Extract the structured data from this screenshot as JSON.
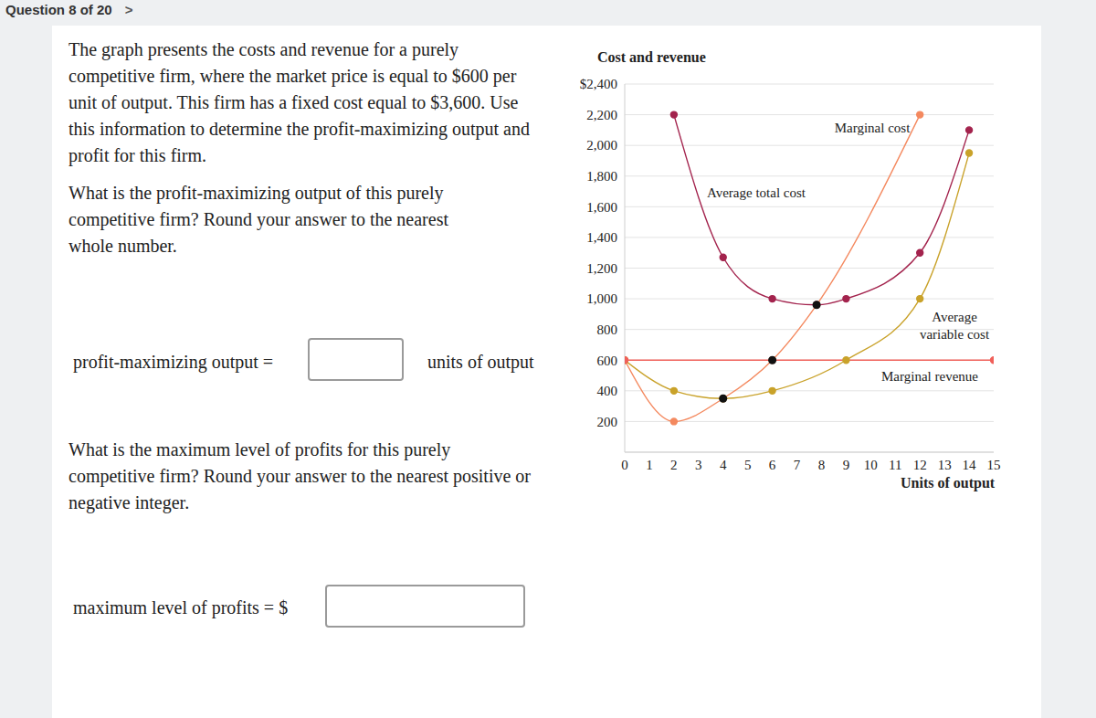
{
  "header": {
    "question": "Question 8 of 20",
    "next": ">"
  },
  "question": {
    "intro": "The graph presents the costs and revenue for a purely competitive firm, where the market price is equal to $600 per unit of output. This firm has a fixed cost equal to $3,600. Use this information to determine the profit-maximizing output and profit for this firm.",
    "part1": {
      "prompt": "What is the profit-maximizing output of this purely competitive firm? Round your answer to the nearest whole number.",
      "label": "profit-maximizing output =",
      "unit": "units of output"
    },
    "part2": {
      "prompt": "What is the maximum level of profits for this purely competitive firm? Round your answer to the nearest positive or negative integer.",
      "label": "maximum level of profits = $"
    }
  },
  "chart_data": {
    "type": "line",
    "ylabel": "Cost and revenue",
    "xlabel": "Units of output",
    "xlim": [
      0,
      15
    ],
    "xticks": [
      0,
      1,
      2,
      3,
      4,
      5,
      6,
      7,
      8,
      9,
      10,
      11,
      12,
      13,
      14,
      15
    ],
    "ylim": [
      0,
      2400
    ],
    "yticks": [
      200,
      400,
      600,
      800,
      {
        "value": 1000,
        "label": "1,000"
      },
      {
        "value": 1200,
        "label": "1,200"
      },
      {
        "value": 1400,
        "label": "1,400"
      },
      {
        "value": 1600,
        "label": "1,600"
      },
      {
        "value": 1800,
        "label": "1,800"
      },
      {
        "value": 2000,
        "label": "2,000"
      },
      {
        "value": 2200,
        "label": "2,200"
      },
      {
        "value": 2400,
        "label": "$2,400"
      }
    ],
    "grid": true,
    "series": [
      {
        "name": "Marginal cost",
        "color": "#f4895f",
        "marker": "circle",
        "line_style": "solid",
        "x": [
          0,
          2,
          4,
          6,
          7.8,
          12
        ],
        "values": [
          600,
          200,
          350,
          600,
          960,
          2200
        ]
      },
      {
        "name": "Average total cost",
        "color": "#a3234d",
        "marker": "circle",
        "line_style": "solid",
        "x": [
          2,
          4,
          6,
          7.8,
          9,
          12,
          14
        ],
        "values": [
          2200,
          1270,
          1000,
          960,
          1000,
          1300,
          2100
        ]
      },
      {
        "name": "Average variable cost",
        "color": "#c9a22a",
        "marker": "circle",
        "line_style": "solid",
        "x": [
          0,
          2,
          4,
          6,
          9,
          12,
          14
        ],
        "values": [
          600,
          400,
          350,
          400,
          600,
          1000,
          1950
        ]
      },
      {
        "name": "Marginal revenue",
        "color": "#f0605a",
        "marker": "circle",
        "line_style": "solid",
        "x": [
          0,
          15
        ],
        "values": [
          600,
          600
        ]
      },
      {
        "type": "scatter",
        "color": "#111111",
        "marker": "circle",
        "x": [
          4,
          6,
          7.8
        ],
        "values": [
          350,
          600,
          960
        ]
      }
    ]
  }
}
